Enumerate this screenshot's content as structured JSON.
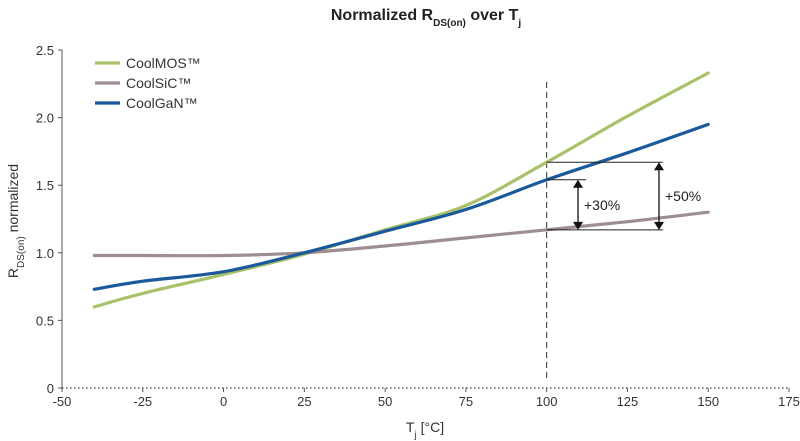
{
  "chart_data": {
    "type": "line",
    "title": {
      "main": "Normalized R",
      "sub": "DS(on)",
      "over": " over T",
      "sub2": "j"
    },
    "xlabel": {
      "main": "T",
      "sub": "j",
      "unit": " [°C]"
    },
    "ylabel": {
      "main": "R",
      "sub": "DS(on)",
      "rest": " normalized"
    },
    "xlim": [
      -50,
      175
    ],
    "ylim": [
      0,
      2.5
    ],
    "x_ticks": [
      -50,
      -25,
      0,
      25,
      50,
      75,
      100,
      125,
      150,
      175
    ],
    "x_tick_labels": [
      "-50",
      "-25",
      "0",
      "25",
      "50",
      "75",
      "100",
      "125",
      "150",
      "175"
    ],
    "y_ticks": [
      0,
      0.5,
      1.0,
      1.5,
      2.0,
      2.5
    ],
    "y_tick_labels": [
      "0",
      "0.5",
      "1.0",
      "1.5",
      "2.0",
      "2.5"
    ],
    "grid": false,
    "legend_position": "top-left",
    "series": [
      {
        "name": "CoolMOS™",
        "color": "#a8c26a",
        "x": [
          -40,
          -25,
          0,
          25,
          50,
          75,
          100,
          125,
          150
        ],
        "y": [
          0.6,
          0.7,
          0.84,
          0.99,
          1.17,
          1.35,
          1.67,
          2.01,
          2.33
        ]
      },
      {
        "name": "CoolSiC™",
        "color": "#9e8d93",
        "x": [
          -40,
          -25,
          0,
          25,
          50,
          75,
          100,
          125,
          150
        ],
        "y": [
          0.98,
          0.98,
          0.98,
          1.0,
          1.05,
          1.11,
          1.17,
          1.23,
          1.3
        ]
      },
      {
        "name": "CoolGaN™",
        "color": "#1a5a9c",
        "x": [
          -40,
          -25,
          0,
          25,
          50,
          75,
          100,
          125,
          150
        ],
        "y": [
          0.73,
          0.79,
          0.86,
          1.0,
          1.16,
          1.32,
          1.54,
          1.74,
          1.95
        ]
      }
    ],
    "reference_line": {
      "x": 100,
      "style": "dashed"
    },
    "annotations": [
      {
        "label": "+30%",
        "from_y": 1.17,
        "to_y": 1.54
      },
      {
        "label": "+50%",
        "from_y": 1.17,
        "to_y": 1.67
      }
    ]
  }
}
